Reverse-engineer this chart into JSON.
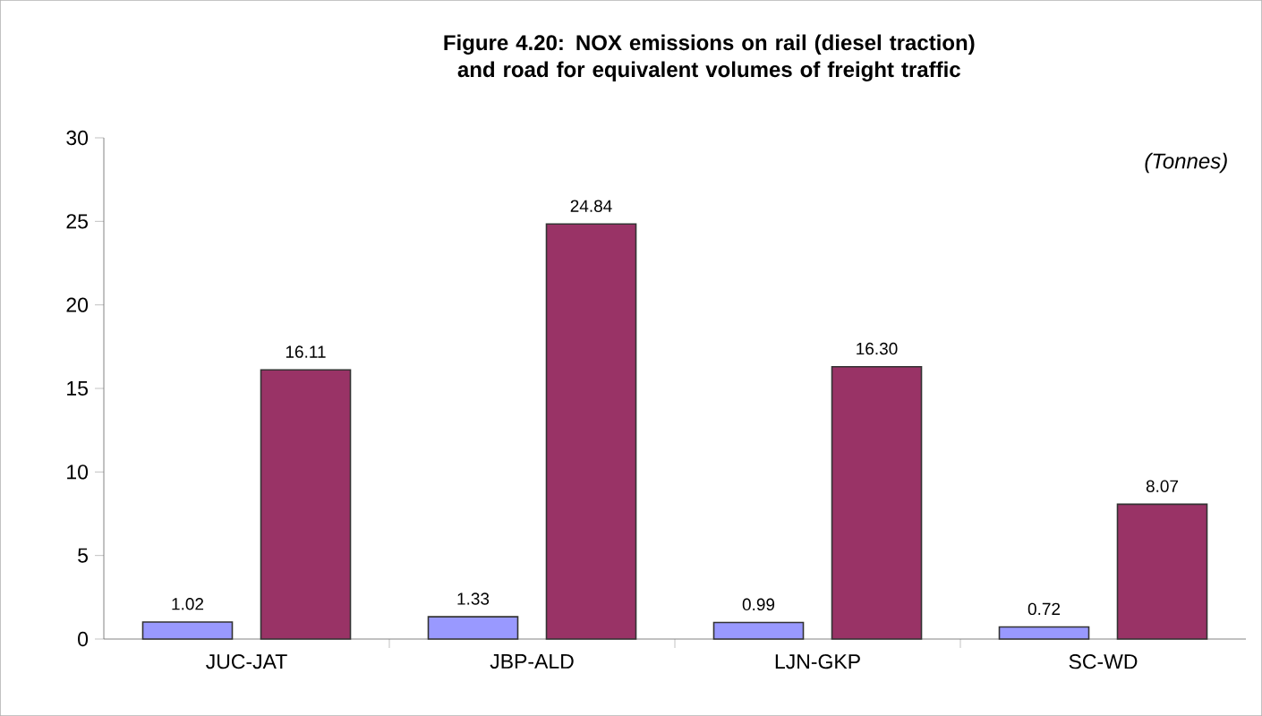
{
  "chart_data": {
    "type": "bar",
    "title": "Figure 4.20: NOX emissions on rail (diesel traction) and road for equivalent volumes of freight traffic",
    "annotations": [
      "(Tonnes)"
    ],
    "categories": [
      "JUC-JAT",
      "JBP-ALD",
      "LJN-GKP",
      "SC-WD"
    ],
    "series": [
      {
        "color": "#9999ff",
        "values": [
          1.02,
          1.33,
          0.99,
          0.72
        ],
        "value_labels": [
          "1.02",
          "1.33",
          "0.99",
          "0.72"
        ]
      },
      {
        "color": "#993366",
        "values": [
          16.11,
          24.84,
          16.3,
          8.07
        ],
        "value_labels": [
          "16.11",
          "24.84",
          "16.30",
          "8.07"
        ]
      }
    ],
    "ylim": [
      0,
      30
    ],
    "yticks": [
      0,
      5,
      10,
      15,
      20,
      25,
      30
    ],
    "grid": false
  }
}
